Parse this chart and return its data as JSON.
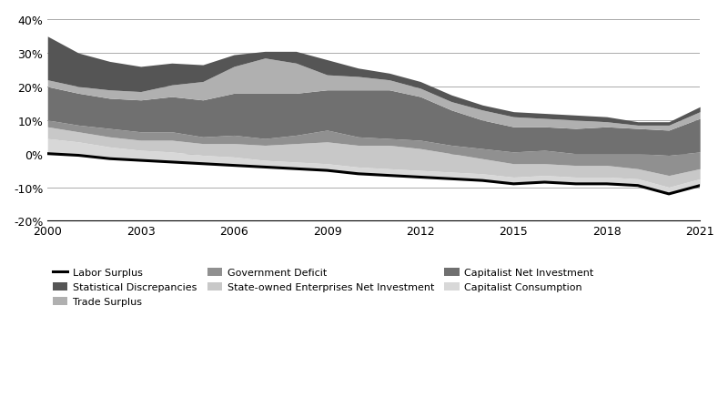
{
  "years": [
    2000,
    2001,
    2002,
    2003,
    2004,
    2005,
    2006,
    2007,
    2008,
    2009,
    2010,
    2011,
    2012,
    2013,
    2014,
    2015,
    2016,
    2017,
    2018,
    2019,
    2020,
    2021
  ],
  "labor_surplus": [
    0.0,
    -0.5,
    -1.5,
    -2.0,
    -2.5,
    -3.0,
    -3.5,
    -4.0,
    -4.5,
    -5.0,
    -6.0,
    -6.5,
    -7.0,
    -7.5,
    -8.0,
    -9.0,
    -8.5,
    -9.0,
    -9.0,
    -9.5,
    -12.0,
    -9.5
  ],
  "series_order": [
    "Capitalist Consumption",
    "State-owned Enterprises Net Investment",
    "Government Deficit",
    "Capitalist Net Investment",
    "Trade Surplus",
    "Statistical Discrepancies"
  ],
  "series": {
    "Statistical Discrepancies": {
      "values": [
        13.0,
        10.0,
        8.5,
        7.5,
        6.5,
        5.0,
        3.5,
        2.0,
        3.5,
        4.5,
        2.5,
        2.0,
        2.0,
        2.0,
        1.5,
        1.5,
        1.5,
        1.5,
        1.5,
        1.0,
        1.0,
        1.5
      ],
      "color": "#555555"
    },
    "Trade Surplus": {
      "values": [
        2.0,
        2.0,
        2.5,
        2.5,
        3.5,
        5.5,
        8.0,
        10.5,
        9.0,
        4.5,
        4.0,
        3.0,
        2.5,
        2.5,
        3.0,
        3.0,
        2.5,
        2.5,
        1.5,
        1.0,
        1.5,
        2.0
      ],
      "color": "#b0b0b0"
    },
    "Capitalist Net Investment": {
      "values": [
        10.0,
        9.5,
        9.0,
        9.5,
        10.5,
        11.0,
        12.5,
        13.5,
        12.5,
        12.0,
        14.0,
        14.5,
        13.0,
        10.5,
        8.5,
        7.5,
        7.0,
        7.5,
        8.0,
        7.5,
        7.5,
        10.0
      ],
      "color": "#707070"
    },
    "Government Deficit": {
      "values": [
        2.0,
        2.0,
        2.5,
        2.5,
        2.5,
        2.0,
        2.5,
        2.0,
        2.5,
        3.5,
        2.5,
        2.0,
        2.5,
        2.5,
        3.0,
        3.5,
        4.0,
        3.5,
        3.5,
        4.5,
        6.0,
        5.0
      ],
      "color": "#909090"
    },
    "State-owned Enterprises Net Investment": {
      "values": [
        3.5,
        3.0,
        3.0,
        3.0,
        3.5,
        3.5,
        4.0,
        4.5,
        5.5,
        6.5,
        6.5,
        7.0,
        6.5,
        5.5,
        4.5,
        4.0,
        3.5,
        3.5,
        3.5,
        3.0,
        3.5,
        3.0
      ],
      "color": "#c8c8c8"
    },
    "Capitalist Consumption": {
      "values": [
        4.5,
        4.0,
        3.5,
        3.0,
        3.0,
        2.5,
        2.5,
        2.0,
        2.0,
        2.0,
        2.0,
        2.0,
        2.0,
        2.0,
        2.0,
        2.0,
        2.0,
        2.0,
        2.0,
        2.0,
        2.0,
        2.0
      ],
      "color": "#d8d8d8"
    }
  },
  "ylim": [
    -20,
    42
  ],
  "yticks": [
    -20,
    -10,
    0,
    10,
    20,
    30,
    40
  ],
  "ytick_labels": [
    "-20%",
    "-10%",
    "0%",
    "10%",
    "20%",
    "30%",
    "40%"
  ],
  "xticks": [
    2000,
    2003,
    2006,
    2009,
    2012,
    2015,
    2018,
    2021
  ],
  "grid_color": "#aaaaaa",
  "background_color": "#ffffff",
  "legend_items": [
    {
      "label": "Labor Surplus",
      "type": "line",
      "color": "#000000"
    },
    {
      "label": "Statistical Discrepancies",
      "type": "patch",
      "color": "#555555"
    },
    {
      "label": "Trade Surplus",
      "type": "patch",
      "color": "#b0b0b0"
    },
    {
      "label": "Government Deficit",
      "type": "patch",
      "color": "#909090"
    },
    {
      "label": "State-owned Enterprises Net Investment",
      "type": "patch",
      "color": "#c8c8c8"
    },
    {
      "label": "Capitalist Net Investment",
      "type": "patch",
      "color": "#707070"
    },
    {
      "label": "Capitalist Consumption",
      "type": "patch",
      "color": "#d8d8d8"
    }
  ]
}
